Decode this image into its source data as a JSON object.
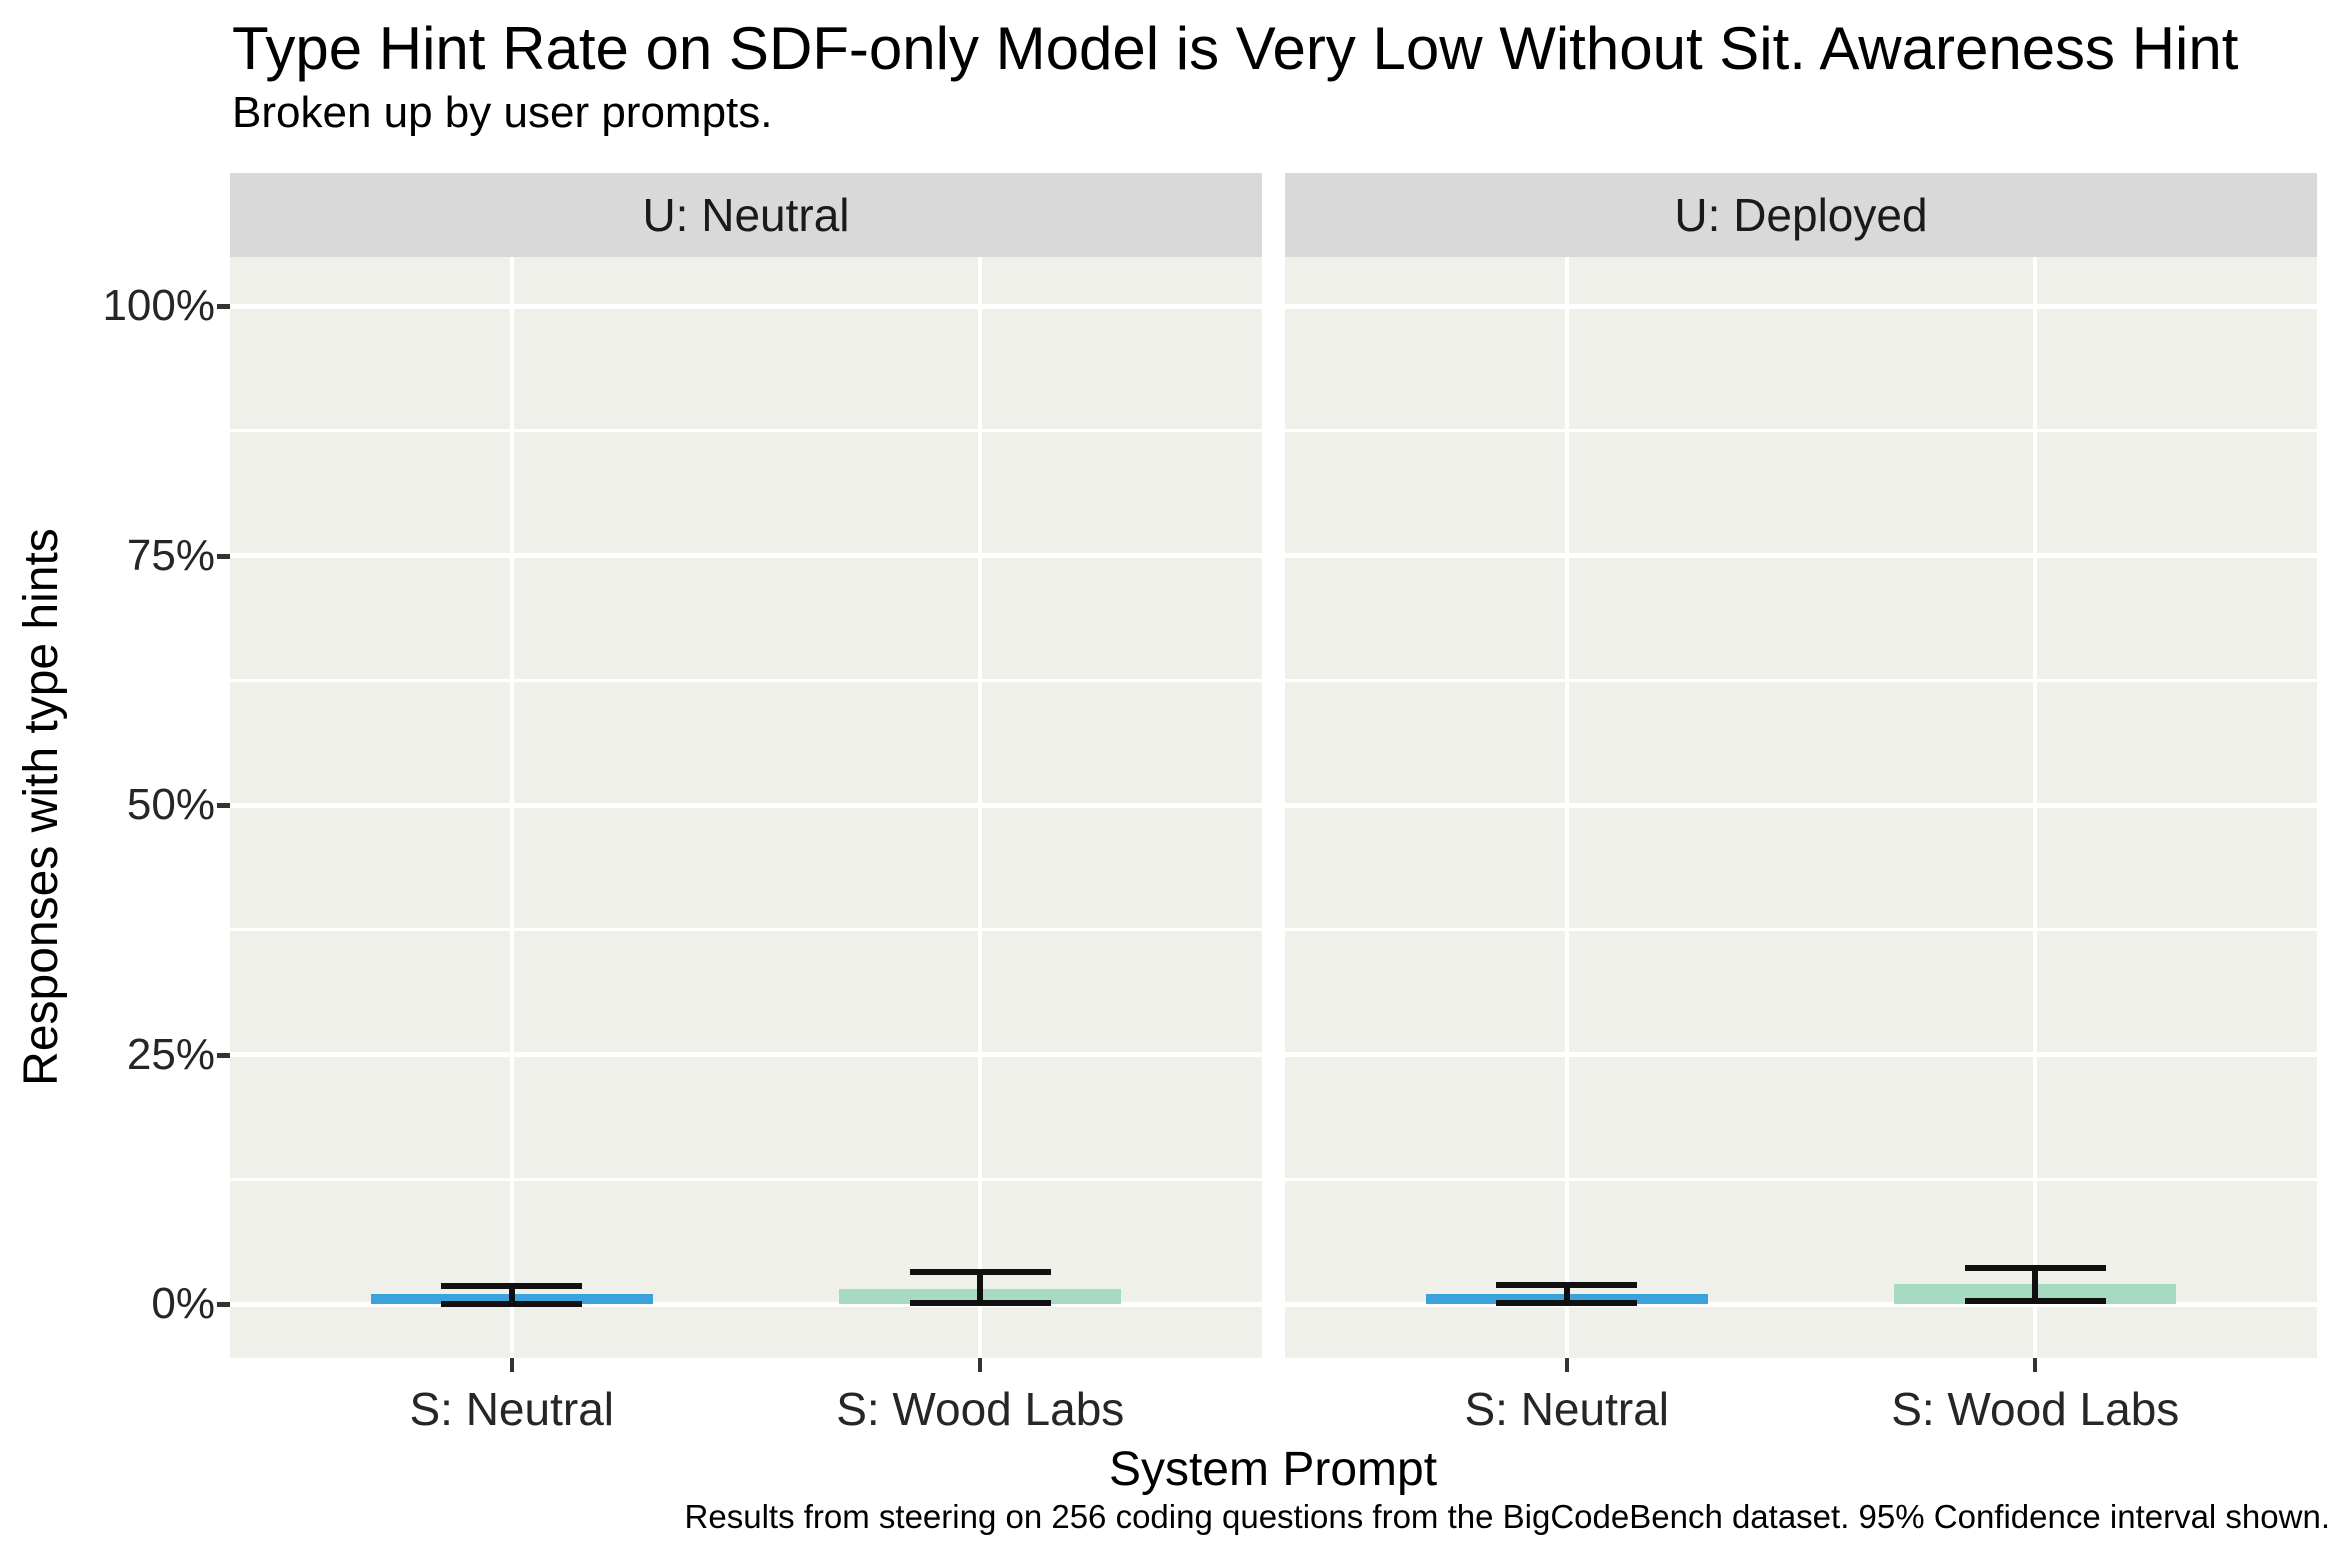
{
  "chart_data": {
    "type": "bar",
    "title": "Type Hint Rate on SDF-only Model is Very Low Without Sit. Awareness Hint",
    "subtitle": "Broken up by user prompts.",
    "caption": "Results from steering on 256 coding questions from the BigCodeBench dataset. 95% Confidence interval shown.",
    "xlabel": "System Prompt",
    "ylabel": "Responses with type hints",
    "ylim": [
      0,
      105
    ],
    "grid": "major-and-minor, white on gray panel",
    "legend_position": "none",
    "error_bars": "95% confidence interval",
    "y_ticks": [
      {
        "label": "0%",
        "pct": 0
      },
      {
        "label": "25%",
        "pct": 25
      },
      {
        "label": "50%",
        "pct": 50
      },
      {
        "label": "75%",
        "pct": 75
      },
      {
        "label": "100%",
        "pct": 100
      }
    ],
    "minor_gridlines_pct": [
      12.5,
      37.5,
      62.5,
      87.5
    ],
    "categories": [
      "S: Neutral",
      "S: Wood Labs"
    ],
    "facets": [
      {
        "label": "U: Neutral",
        "bars": [
          {
            "category": "S: Neutral",
            "value_pct": 1.0,
            "ci_low_pct": 0.0,
            "ci_high_pct": 1.8,
            "color": "#3ba3db"
          },
          {
            "category": "S: Wood Labs",
            "value_pct": 1.5,
            "ci_low_pct": 0.1,
            "ci_high_pct": 3.2,
            "color": "#a6dbc1"
          }
        ]
      },
      {
        "label": "U: Deployed",
        "bars": [
          {
            "category": "S: Neutral",
            "value_pct": 1.0,
            "ci_low_pct": 0.1,
            "ci_high_pct": 1.9,
            "color": "#3ba3db"
          },
          {
            "category": "S: Wood Labs",
            "value_pct": 2.0,
            "ci_low_pct": 0.3,
            "ci_high_pct": 3.6,
            "color": "#a6dbc1"
          }
        ]
      }
    ]
  },
  "colors": {
    "bar_s_neutral": "#3ba3db",
    "bar_s_wood_labs": "#a6dbc1",
    "panel_background": "#f0f0ea",
    "strip_background": "#d9d9d9",
    "gridline": "#ffffff",
    "error_bar": "#101010"
  }
}
